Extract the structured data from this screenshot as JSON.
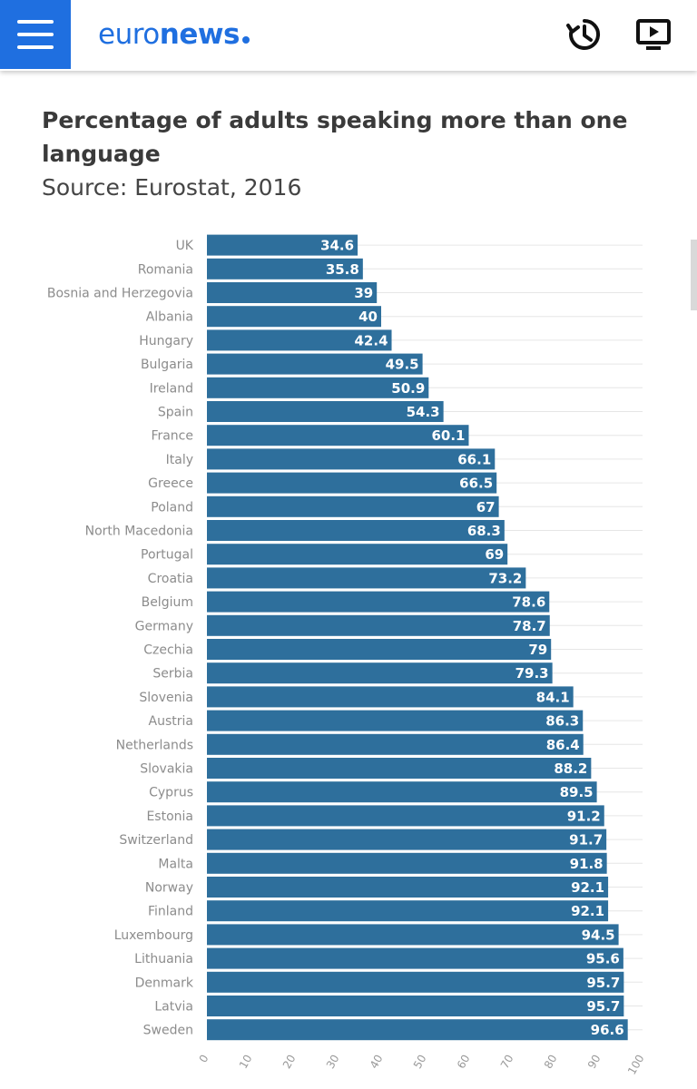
{
  "header": {
    "logo_part1": "euro",
    "logo_part2": "news",
    "menu_icon": "hamburger-menu-icon",
    "recent_icon": "clock-history-icon",
    "live_icon": "tv-play-icon",
    "brand_color": "#1f6fe0"
  },
  "chart_data": {
    "type": "bar",
    "orientation": "horizontal",
    "title": "Percentage of adults speaking more than one language",
    "subtitle": "Source: Eurostat, 2016",
    "xlabel": "",
    "ylabel": "",
    "xlim": [
      0,
      100
    ],
    "ticks": [
      0,
      10,
      20,
      30,
      40,
      50,
      60,
      70,
      80,
      90,
      100
    ],
    "bar_color": "#2e6f9c",
    "categories": [
      "UK",
      "Romania",
      "Bosnia and Herzegovia",
      "Albania",
      "Hungary",
      "Bulgaria",
      "Ireland",
      "Spain",
      "France",
      "Italy",
      "Greece",
      "Poland",
      "North Macedonia",
      "Portugal",
      "Croatia",
      "Belgium",
      "Germany",
      "Czechia",
      "Serbia",
      "Slovenia",
      "Austria",
      "Netherlands",
      "Slovakia",
      "Cyprus",
      "Estonia",
      "Switzerland",
      "Malta",
      "Norway",
      "Finland",
      "Luxembourg",
      "Lithuania",
      "Denmark",
      "Latvia",
      "Sweden"
    ],
    "values": [
      34.6,
      35.8,
      39,
      40,
      42.4,
      49.5,
      50.9,
      54.3,
      60.1,
      66.1,
      66.5,
      67,
      68.3,
      69,
      73.2,
      78.6,
      78.7,
      79,
      79.3,
      84.1,
      86.3,
      86.4,
      88.2,
      89.5,
      91.2,
      91.7,
      91.8,
      92.1,
      92.1,
      94.5,
      95.6,
      95.7,
      95.7,
      96.6
    ]
  }
}
